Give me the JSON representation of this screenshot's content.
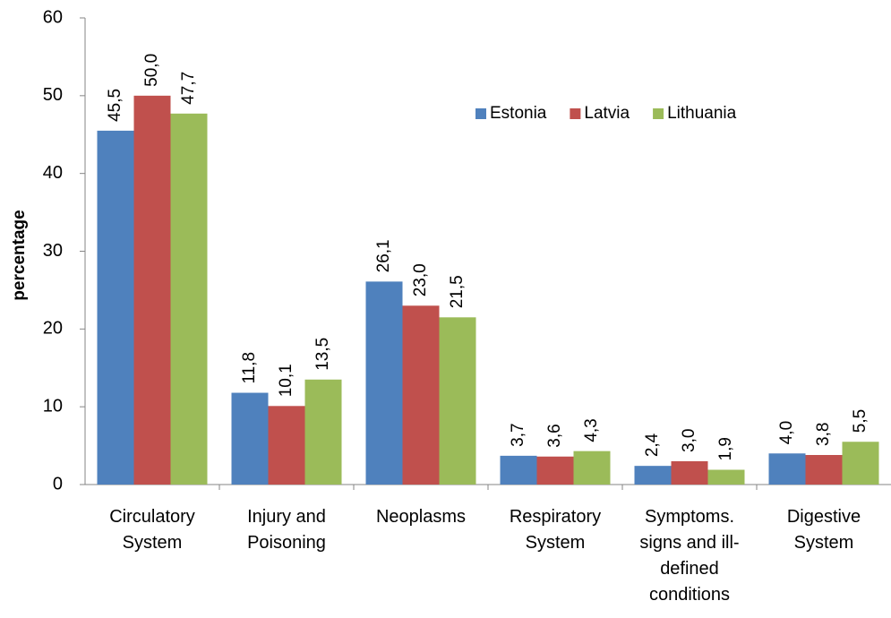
{
  "chart_data": {
    "type": "bar",
    "y_label": "percentage",
    "categories": [
      "Circulatory System",
      "Injury and Poisoning",
      "Neoplasms",
      "Respiratory System",
      "Symptoms. signs and ill-defined conditions",
      "Digestive System"
    ],
    "series": [
      {
        "name": "Estonia",
        "color": "#4f81bd",
        "values": [
          45.5,
          11.8,
          26.1,
          3.7,
          2.4,
          4.0
        ],
        "value_labels": [
          "45,5",
          "11,8",
          "26,1",
          "3,7",
          "2,4",
          "4,0"
        ]
      },
      {
        "name": "Latvia",
        "color": "#c0504d",
        "values": [
          50.0,
          10.1,
          23.0,
          3.6,
          3.0,
          3.8
        ],
        "value_labels": [
          "50,0",
          "10,1",
          "23,0",
          "3,6",
          "3,0",
          "3,8"
        ]
      },
      {
        "name": "Lithuania",
        "color": "#9bbb59",
        "values": [
          47.7,
          13.5,
          21.5,
          4.3,
          1.9,
          5.5
        ],
        "value_labels": [
          "47,7",
          "13,5",
          "21,5",
          "4,3",
          "1,9",
          "5,5"
        ]
      }
    ],
    "ylim": [
      0,
      60
    ],
    "yticks": [
      0,
      10,
      20,
      30,
      40,
      50,
      60
    ],
    "grid": false,
    "legend": "top-right"
  }
}
